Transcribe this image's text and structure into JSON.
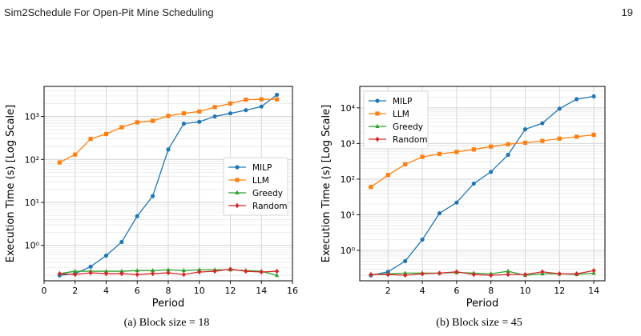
{
  "header": {
    "running_title": "Sim2Schedule For Open-Pit Mine Scheduling",
    "page_number": "19"
  },
  "chart_data": [
    {
      "type": "line",
      "caption": "(a) Block size = 18",
      "xlabel": "Period",
      "ylabel": "Execution Time (s) [Log Scale]",
      "yscale": "log",
      "xlim": [
        0,
        16
      ],
      "ylim": [
        0.15,
        5000
      ],
      "xticks": [
        0,
        2,
        4,
        6,
        8,
        10,
        12,
        14,
        16
      ],
      "yticks": [
        1,
        10,
        100,
        1000
      ],
      "ytick_labels": [
        "10⁰",
        "10¹",
        "10²",
        "10³"
      ],
      "grid": true,
      "legend_position": "center-right",
      "series": [
        {
          "name": "MILP",
          "color": "#1f77b4",
          "marker": "circle",
          "x": [
            1,
            2,
            3,
            4,
            5,
            6,
            7,
            8,
            9,
            10,
            11,
            12,
            13,
            14,
            15
          ],
          "y": [
            0.2,
            0.22,
            0.32,
            0.58,
            1.2,
            4.8,
            14,
            170,
            680,
            750,
            1000,
            1180,
            1400,
            1700,
            3200
          ]
        },
        {
          "name": "LLM",
          "color": "#ff7f0e",
          "marker": "square",
          "x": [
            1,
            2,
            3,
            4,
            5,
            6,
            7,
            8,
            9,
            10,
            11,
            12,
            13,
            14,
            15
          ],
          "y": [
            85,
            130,
            300,
            390,
            560,
            730,
            790,
            1030,
            1180,
            1300,
            1650,
            2000,
            2450,
            2500,
            2500
          ]
        },
        {
          "name": "Greedy",
          "color": "#2ca02c",
          "marker": "triangle",
          "x": [
            1,
            2,
            3,
            4,
            5,
            6,
            7,
            8,
            9,
            10,
            11,
            12,
            13,
            14,
            15
          ],
          "y": [
            0.22,
            0.25,
            0.25,
            0.25,
            0.25,
            0.26,
            0.26,
            0.27,
            0.26,
            0.27,
            0.27,
            0.27,
            0.26,
            0.25,
            0.2
          ]
        },
        {
          "name": "Random",
          "color": "#d62728",
          "marker": "diamond",
          "x": [
            1,
            2,
            3,
            4,
            5,
            6,
            7,
            8,
            9,
            10,
            11,
            12,
            13,
            14,
            15
          ],
          "y": [
            0.22,
            0.21,
            0.23,
            0.22,
            0.22,
            0.21,
            0.22,
            0.23,
            0.21,
            0.24,
            0.25,
            0.28,
            0.25,
            0.24,
            0.25
          ]
        }
      ]
    },
    {
      "type": "line",
      "caption": "(b) Block size = 45",
      "xlabel": "Period",
      "ylabel": "Execution Time (s) [Log Scale]",
      "yscale": "log",
      "xlim": [
        0.35,
        14.65
      ],
      "ylim": [
        0.14,
        40000
      ],
      "xticks": [
        2,
        4,
        6,
        8,
        10,
        12,
        14
      ],
      "yticks": [
        1,
        10,
        100,
        1000,
        10000
      ],
      "ytick_labels": [
        "10⁰",
        "10¹",
        "10²",
        "10³",
        "10⁴"
      ],
      "grid": true,
      "legend_position": "top-left",
      "series": [
        {
          "name": "MILP",
          "color": "#1f77b4",
          "marker": "circle",
          "x": [
            1,
            2,
            3,
            4,
            5,
            6,
            7,
            8,
            9,
            10,
            11,
            12,
            13,
            14
          ],
          "y": [
            0.2,
            0.25,
            0.5,
            2,
            11,
            22,
            75,
            160,
            480,
            2500,
            3700,
            9500,
            17500,
            21000
          ]
        },
        {
          "name": "LLM",
          "color": "#ff7f0e",
          "marker": "square",
          "x": [
            1,
            2,
            3,
            4,
            5,
            6,
            7,
            8,
            9,
            10,
            11,
            12,
            13,
            14
          ],
          "y": [
            60,
            130,
            260,
            420,
            510,
            580,
            680,
            820,
            950,
            1050,
            1180,
            1370,
            1550,
            1750
          ]
        },
        {
          "name": "Greedy",
          "color": "#2ca02c",
          "marker": "triangle",
          "x": [
            1,
            2,
            3,
            4,
            5,
            6,
            7,
            8,
            9,
            10,
            11,
            12,
            13,
            14
          ],
          "y": [
            0.21,
            0.22,
            0.23,
            0.23,
            0.23,
            0.24,
            0.23,
            0.22,
            0.26,
            0.2,
            0.22,
            0.22,
            0.21,
            0.23
          ]
        },
        {
          "name": "Random",
          "color": "#d62728",
          "marker": "diamond",
          "x": [
            1,
            2,
            3,
            4,
            5,
            6,
            7,
            8,
            9,
            10,
            11,
            12,
            13,
            14
          ],
          "y": [
            0.21,
            0.21,
            0.2,
            0.22,
            0.23,
            0.25,
            0.21,
            0.2,
            0.21,
            0.21,
            0.25,
            0.22,
            0.22,
            0.27
          ]
        }
      ]
    }
  ]
}
